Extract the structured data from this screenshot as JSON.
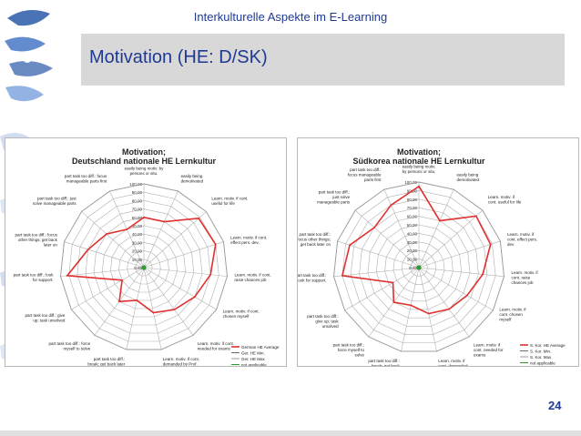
{
  "header": {
    "text": "Interkulturelle Aspekte im E-Learning"
  },
  "slide": {
    "title": "Motivation (HE: D/SK)",
    "page_number": "24"
  },
  "chart_data": [
    {
      "type": "radar",
      "title": [
        "Motivation;",
        "Deutschland nationale HE Lernkultur"
      ],
      "axis_ticks": [
        "0,00",
        "10,00",
        "20,00",
        "30,00",
        "40,00",
        "50,00",
        "60,00",
        "70,00",
        "80,00",
        "90,00",
        "100,00"
      ],
      "rmax": 100,
      "categories": [
        [
          "easily being motiv. by",
          "persons or situ."
        ],
        [
          "easily being",
          "demotivated"
        ],
        [
          "Learn. motiv. if cont.",
          "useful for life"
        ],
        [
          "Learn. motiv. if cont.",
          "effect pers. dev."
        ],
        [
          "Learn. motiv. if cont.",
          "raise chances job"
        ],
        [
          "Learn. motiv. if cont.",
          "chosen myself"
        ],
        [
          "Learn. motiv. if cont.",
          "needed for exams"
        ],
        [
          "Learn. motiv. if cont.",
          "demanded by Prof."
        ],
        [
          "part task too diff.:",
          "break; get back later"
        ],
        [
          "part task too diff.: force",
          "myself to solve"
        ],
        [
          "part task too diff.: give",
          "up; task unsolved"
        ],
        [
          "part task too diff.: look",
          "for support."
        ],
        [
          "part task too diff.: focus",
          "other things; get back",
          "later on"
        ],
        [
          "part task too diff.: just",
          "solve manageable parts"
        ],
        [
          "part task too diff.: focus",
          "manageable parts first"
        ]
      ],
      "series": [
        {
          "name": "German HE Average",
          "color": "#e03030",
          "values": [
            60,
            60,
            88,
            90,
            80,
            70,
            62,
            55,
            40,
            50,
            30,
            92,
            70,
            60,
            50
          ]
        },
        {
          "name": "Ger. HE Min.",
          "color": "#6b6b6b",
          "values": [
            0,
            0,
            0,
            0,
            0,
            0,
            0,
            0,
            0,
            0,
            0,
            0,
            0,
            0,
            0
          ]
        },
        {
          "name": "Ger. HE Max",
          "color": "#9a9a9a",
          "values": [
            100,
            100,
            100,
            100,
            100,
            100,
            100,
            100,
            100,
            100,
            100,
            100,
            100,
            100,
            100
          ]
        },
        {
          "name": "not applicable",
          "color": "#2f9a2f",
          "values": [
            0,
            0,
            0,
            0,
            0,
            0,
            0,
            0,
            0,
            0,
            0,
            0,
            0,
            0,
            0
          ]
        }
      ]
    },
    {
      "type": "radar",
      "title": [
        "Motivation;",
        "Südkorea nationale HE Lernkultur"
      ],
      "axis_ticks": [
        "0,00",
        "10,00",
        "20,00",
        "30,00",
        "40,00",
        "50,00",
        "60,00",
        "70,00",
        "80,00",
        "90,00",
        "100,00"
      ],
      "rmax": 100,
      "categories": [
        [
          "easily being motiv.",
          "by persons or situ."
        ],
        [
          "easily being",
          "demotivated"
        ],
        [
          "Learn. motiv. if",
          "cont. useful for life"
        ],
        [
          "Learn. motiv. if",
          "cont. effect pers.",
          "dev."
        ],
        [
          "Learn. motiv. if",
          "cont. raise",
          "chances job"
        ],
        [
          "Learn. motiv. if",
          "cont. chosen",
          "myself"
        ],
        [
          "Learn. motiv. if",
          "cont. needed for",
          "exams"
        ],
        [
          "Learn. motiv. if",
          "cont. demanded",
          "by Prof."
        ],
        [
          "part task too diff.:",
          "break; get back",
          "later"
        ],
        [
          "part task too diff.:",
          "force myself to",
          "solve"
        ],
        [
          "part task too diff.:",
          "give up; task",
          "unsolved"
        ],
        [
          "part task too diff.:",
          "look for support."
        ],
        [
          "part task too diff.:",
          "focus other things;",
          "get back later on"
        ],
        [
          "part task too diff.:",
          "just solve",
          "manageable parts"
        ],
        [
          "part task too diff.:",
          "focus manageable",
          "parts first"
        ]
      ],
      "series": [
        {
          "name": "S. Kor. HE Average",
          "color": "#e03030",
          "values": [
            95,
            60,
            90,
            88,
            75,
            65,
            60,
            55,
            45,
            50,
            35,
            90,
            85,
            70,
            80
          ]
        },
        {
          "name": "S. Kor. Min.",
          "color": "#6b6b6b",
          "values": [
            0,
            0,
            0,
            0,
            0,
            0,
            0,
            0,
            0,
            0,
            0,
            0,
            0,
            0,
            0
          ]
        },
        {
          "name": "S. Kor. Max",
          "color": "#9a9a9a",
          "values": [
            100,
            100,
            100,
            100,
            100,
            100,
            100,
            100,
            100,
            100,
            100,
            100,
            100,
            100,
            100
          ]
        },
        {
          "name": "not applicable",
          "color": "#2f9a2f",
          "values": [
            0,
            0,
            0,
            0,
            0,
            0,
            0,
            0,
            0,
            0,
            0,
            0,
            0,
            0,
            0
          ]
        }
      ]
    }
  ]
}
